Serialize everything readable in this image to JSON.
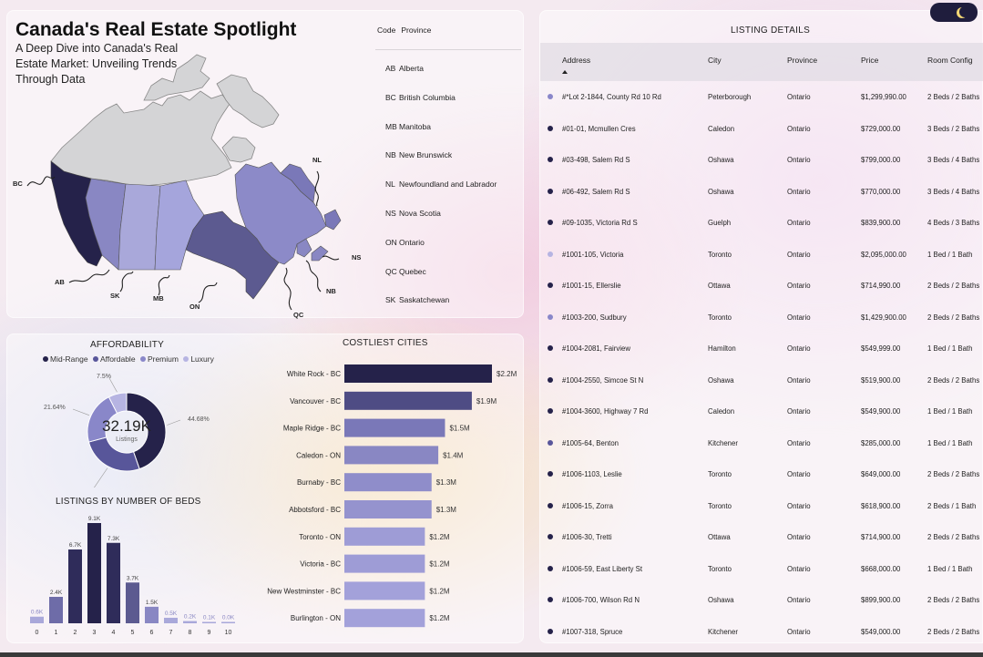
{
  "header": {
    "title": "Canada's Real Estate Spotlight",
    "subtitle": "A Deep Dive into Canada's Real Estate Market: Unveiling Trends Through Data"
  },
  "map": {
    "callouts": [
      "BC",
      "AB",
      "SK",
      "MB",
      "ON",
      "QC",
      "NB",
      "NS",
      "NL"
    ],
    "colors": {
      "gray": "#d4d4d6",
      "bc": "#25224a",
      "ab": "#8987c3",
      "sk": "#a9a8da",
      "mb": "#a5a5dc",
      "on": "#5c5a90",
      "qc": "#8c8ac8",
      "nl": "#7a78b8"
    }
  },
  "province_table": {
    "headers": [
      "Code",
      "Province"
    ],
    "rows": [
      {
        "code": "AB",
        "name": "Alberta"
      },
      {
        "code": "BC",
        "name": "British Columbia"
      },
      {
        "code": "MB",
        "name": "Manitoba"
      },
      {
        "code": "NB",
        "name": "New Brunswick"
      },
      {
        "code": "NL",
        "name": "Newfoundland and Labrador"
      },
      {
        "code": "NS",
        "name": "Nova Scotia"
      },
      {
        "code": "ON",
        "name": "Ontario"
      },
      {
        "code": "QC",
        "name": "Quebec"
      },
      {
        "code": "SK",
        "name": "Saskatchewan"
      }
    ]
  },
  "affordability": {
    "title": "AFFORDABILITY",
    "legend": [
      "Mid-Range",
      "Affordable",
      "Premium",
      "Luxury"
    ],
    "center_value": "32.19K",
    "center_label": "Listings"
  },
  "beds_chart": {
    "title": "LISTINGS BY NUMBER OF BEDS"
  },
  "cities_chart": {
    "title": "COSTLIEST CITIES"
  },
  "chart_data": [
    {
      "type": "pie",
      "title": "AFFORDABILITY",
      "labels": [
        "Mid-Range",
        "Affordable",
        "Premium",
        "Luxury"
      ],
      "values": [
        44.68,
        26.17,
        21.64,
        7.5
      ],
      "value_labels": [
        "44.68%",
        "26.17%",
        "21.64%",
        "7.5%"
      ],
      "colors": [
        "#25224a",
        "#58569a",
        "#8987c9",
        "#b6b4e2"
      ]
    },
    {
      "type": "bar",
      "title": "LISTINGS BY NUMBER OF BEDS",
      "categories": [
        "0",
        "1",
        "2",
        "3",
        "4",
        "5",
        "6",
        "7",
        "8",
        "9",
        "10"
      ],
      "values": [
        0.6,
        2.4,
        6.7,
        9.1,
        7.3,
        3.7,
        1.5,
        0.5,
        0.2,
        0.1,
        0.0
      ],
      "value_labels": [
        "0.6K",
        "2.4K",
        "6.7K",
        "9.1K",
        "7.3K",
        "3.7K",
        "1.5K",
        "0.5K",
        "0.2K",
        "0.1K",
        "0.0K"
      ],
      "colors": [
        "#a9a8da",
        "#6e6ca8",
        "#2f2c5a",
        "#25224a",
        "#2f2c5a",
        "#5c5a90",
        "#8987c3",
        "#a9a8da",
        "#a9a8da",
        "#a9a8da",
        "#a9a8da"
      ]
    },
    {
      "type": "bar",
      "orientation": "horizontal",
      "title": "COSTLIEST CITIES",
      "categories": [
        "White Rock - BC",
        "Vancouver - BC",
        "Maple Ridge - BC",
        "Caledon - ON",
        "Burnaby - BC",
        "Abbotsford - BC",
        "Toronto - ON",
        "Victoria - BC",
        "New Westminster - BC",
        "Burlington - ON"
      ],
      "values": [
        2.2,
        1.9,
        1.5,
        1.4,
        1.3,
        1.3,
        1.2,
        1.2,
        1.2,
        1.2
      ],
      "value_labels": [
        "$2.2M",
        "$1.9M",
        "$1.5M",
        "$1.4M",
        "$1.3M",
        "$1.3M",
        "$1.2M",
        "$1.2M",
        "$1.2M",
        "$1.2M"
      ],
      "colors": [
        "#25224a",
        "#4e4c84",
        "#7a78b8",
        "#8987c3",
        "#8f8dca",
        "#9593ce",
        "#9e9cd6",
        "#9e9cd6",
        "#a3a1da",
        "#a3a1da"
      ]
    }
  ],
  "listing": {
    "title": "LISTING DETAILS",
    "columns": [
      "Address",
      "City",
      "Province",
      "Price",
      "Room Config"
    ],
    "rows": [
      {
        "dot": "#8987c9",
        "address": "#*Lot 2-1844, County Rd 10 Rd",
        "city": "Peterborough",
        "province": "Ontario",
        "price": "$1,299,990.00",
        "rooms": "2 Beds / 2 Baths"
      },
      {
        "dot": "#25224a",
        "address": "#01-01, Mcmullen Cres",
        "city": "Caledon",
        "province": "Ontario",
        "price": "$729,000.00",
        "rooms": "3 Beds / 2 Baths"
      },
      {
        "dot": "#25224a",
        "address": "#03-498, Salem Rd S",
        "city": "Oshawa",
        "province": "Ontario",
        "price": "$799,000.00",
        "rooms": "3 Beds / 4 Baths"
      },
      {
        "dot": "#25224a",
        "address": "#06-492, Salem Rd S",
        "city": "Oshawa",
        "province": "Ontario",
        "price": "$770,000.00",
        "rooms": "3 Beds / 4 Baths"
      },
      {
        "dot": "#25224a",
        "address": "#09-1035, Victoria Rd S",
        "city": "Guelph",
        "province": "Ontario",
        "price": "$839,900.00",
        "rooms": "4 Beds / 3 Baths"
      },
      {
        "dot": "#b6b4e2",
        "address": "#1001-105, Victoria",
        "city": "Toronto",
        "province": "Ontario",
        "price": "$2,095,000.00",
        "rooms": "1 Bed / 1 Bath"
      },
      {
        "dot": "#25224a",
        "address": "#1001-15, Ellerslie",
        "city": "Ottawa",
        "province": "Ontario",
        "price": "$714,990.00",
        "rooms": "2 Beds / 2 Baths"
      },
      {
        "dot": "#8987c9",
        "address": "#1003-200, Sudbury",
        "city": "Toronto",
        "province": "Ontario",
        "price": "$1,429,900.00",
        "rooms": "2 Beds / 2 Baths"
      },
      {
        "dot": "#25224a",
        "address": "#1004-2081, Fairview",
        "city": "Hamilton",
        "province": "Ontario",
        "price": "$549,999.00",
        "rooms": "1 Bed / 1 Bath"
      },
      {
        "dot": "#25224a",
        "address": "#1004-2550, Simcoe St N",
        "city": "Oshawa",
        "province": "Ontario",
        "price": "$519,900.00",
        "rooms": "2 Beds / 2 Baths"
      },
      {
        "dot": "#25224a",
        "address": "#1004-3600, Highway 7 Rd",
        "city": "Caledon",
        "province": "Ontario",
        "price": "$549,900.00",
        "rooms": "1 Bed / 1 Bath"
      },
      {
        "dot": "#58569a",
        "address": "#1005-64, Benton",
        "city": "Kitchener",
        "province": "Ontario",
        "price": "$285,000.00",
        "rooms": "1 Bed / 1 Bath"
      },
      {
        "dot": "#25224a",
        "address": "#1006-1103, Leslie",
        "city": "Toronto",
        "province": "Ontario",
        "price": "$649,000.00",
        "rooms": "2 Beds / 2 Baths"
      },
      {
        "dot": "#25224a",
        "address": "#1006-15, Zorra",
        "city": "Toronto",
        "province": "Ontario",
        "price": "$618,900.00",
        "rooms": "2 Beds / 1 Bath"
      },
      {
        "dot": "#25224a",
        "address": "#1006-30, Tretti",
        "city": "Ottawa",
        "province": "Ontario",
        "price": "$714,900.00",
        "rooms": "2 Beds / 2 Baths"
      },
      {
        "dot": "#25224a",
        "address": "#1006-59, East Liberty St",
        "city": "Toronto",
        "province": "Ontario",
        "price": "$668,000.00",
        "rooms": "1 Bed / 1 Bath"
      },
      {
        "dot": "#25224a",
        "address": "#1006-700, Wilson Rd N",
        "city": "Oshawa",
        "province": "Ontario",
        "price": "$899,900.00",
        "rooms": "2 Beds / 2 Baths"
      },
      {
        "dot": "#25224a",
        "address": "#1007-318, Spruce",
        "city": "Kitchener",
        "province": "Ontario",
        "price": "$549,000.00",
        "rooms": "2 Beds / 2 Baths"
      }
    ]
  },
  "theme_toggle": {
    "icon": "moon-icon"
  }
}
